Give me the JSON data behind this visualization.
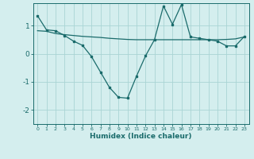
{
  "line1_x": [
    0,
    1,
    2,
    3,
    4,
    5,
    6,
    7,
    8,
    9,
    10,
    11,
    12,
    13,
    14,
    15,
    16,
    17,
    18,
    19,
    20,
    21,
    22,
    23
  ],
  "line1_y": [
    1.35,
    0.85,
    0.82,
    0.65,
    0.45,
    0.3,
    -0.1,
    -0.65,
    -1.2,
    -1.55,
    -1.58,
    -0.8,
    -0.08,
    0.5,
    1.7,
    1.05,
    1.75,
    0.6,
    0.55,
    0.5,
    0.45,
    0.28,
    0.28,
    0.62
  ],
  "line2_x": [
    0,
    1,
    2,
    3,
    4,
    5,
    6,
    7,
    8,
    9,
    10,
    11,
    12,
    13,
    14,
    15,
    16,
    17,
    18,
    19,
    20,
    21,
    22,
    23
  ],
  "line2_y": [
    0.82,
    0.8,
    0.72,
    0.68,
    0.65,
    0.62,
    0.6,
    0.58,
    0.55,
    0.53,
    0.51,
    0.5,
    0.5,
    0.5,
    0.5,
    0.5,
    0.5,
    0.5,
    0.5,
    0.5,
    0.5,
    0.51,
    0.53,
    0.6
  ],
  "color": "#1a6b6b",
  "bg_color": "#d4eeee",
  "grid_color": "#aad4d4",
  "xlabel": "Humidex (Indice chaleur)",
  "yticks": [
    -2,
    -1,
    0,
    1
  ],
  "xtick_labels": [
    "0",
    "1",
    "2",
    "3",
    "4",
    "5",
    "6",
    "7",
    "8",
    "9",
    "10",
    "11",
    "12",
    "13",
    "14",
    "15",
    "16",
    "17",
    "18",
    "19",
    "20",
    "21",
    "22",
    "23"
  ],
  "xlim": [
    -0.5,
    23.5
  ],
  "ylim": [
    -2.5,
    1.8
  ]
}
